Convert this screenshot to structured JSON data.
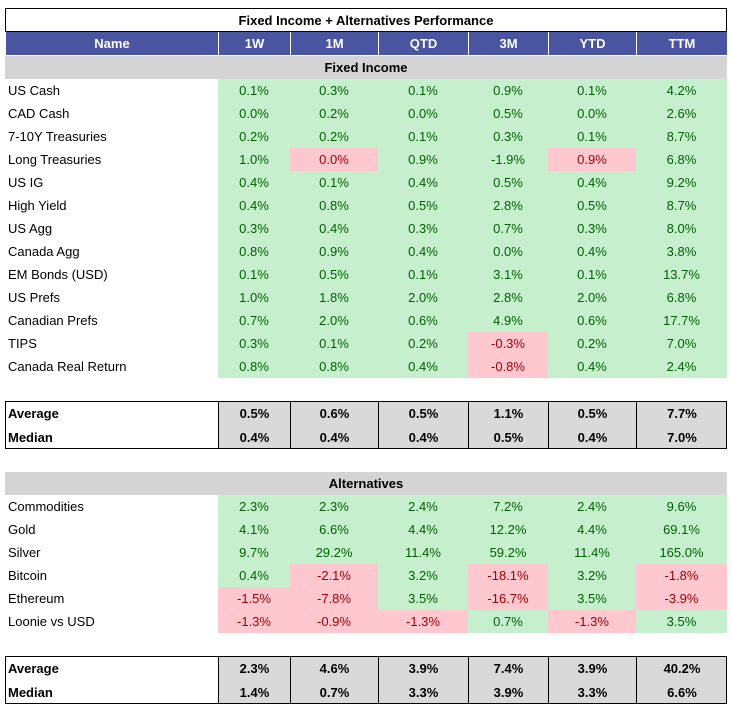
{
  "title": "Fixed Income + Alternatives Performance",
  "columns": [
    "Name",
    "1W",
    "1M",
    "QTD",
    "3M",
    "YTD",
    "TTM"
  ],
  "colors": {
    "g": {
      "fill": "#c6efce",
      "text": "#006100"
    },
    "r": {
      "fill": "#ffc7ce",
      "text": "#9c0006"
    },
    "header": "#4a55a2",
    "section": "#d4d4d4",
    "summary": "#d9d9d9"
  },
  "sections": [
    {
      "title": "Fixed Income",
      "rows": [
        {
          "name": "US Cash",
          "values": [
            "0.1%",
            "0.3%",
            "0.1%",
            "0.9%",
            "0.1%",
            "4.2%"
          ],
          "shade": "gggggg"
        },
        {
          "name": "CAD Cash",
          "values": [
            "0.0%",
            "0.2%",
            "0.0%",
            "0.5%",
            "0.0%",
            "2.6%"
          ],
          "shade": "gggggg"
        },
        {
          "name": "7-10Y Treasuries",
          "values": [
            "0.2%",
            "0.2%",
            "0.1%",
            "0.3%",
            "0.1%",
            "8.7%"
          ],
          "shade": "gggggg"
        },
        {
          "name": "Long Treasuries",
          "values": [
            "1.0%",
            "0.0%",
            "0.9%",
            "-1.9%",
            "0.9%",
            "6.8%"
          ],
          "shade": "grggrg"
        },
        {
          "name": "US IG",
          "values": [
            "0.4%",
            "0.1%",
            "0.4%",
            "0.5%",
            "0.4%",
            "9.2%"
          ],
          "shade": "gggggg"
        },
        {
          "name": "High Yield",
          "values": [
            "0.4%",
            "0.8%",
            "0.5%",
            "2.8%",
            "0.5%",
            "8.7%"
          ],
          "shade": "gggggg"
        },
        {
          "name": "US Agg",
          "values": [
            "0.3%",
            "0.4%",
            "0.3%",
            "0.7%",
            "0.3%",
            "8.0%"
          ],
          "shade": "gggggg"
        },
        {
          "name": "Canada Agg",
          "values": [
            "0.8%",
            "0.9%",
            "0.4%",
            "0.0%",
            "0.4%",
            "3.8%"
          ],
          "shade": "gggggg"
        },
        {
          "name": "EM Bonds (USD)",
          "values": [
            "0.1%",
            "0.5%",
            "0.1%",
            "3.1%",
            "0.1%",
            "13.7%"
          ],
          "shade": "gggggg"
        },
        {
          "name": "US Prefs",
          "values": [
            "1.0%",
            "1.8%",
            "2.0%",
            "2.8%",
            "2.0%",
            "6.8%"
          ],
          "shade": "gggggg"
        },
        {
          "name": "Canadian Prefs",
          "values": [
            "0.7%",
            "2.0%",
            "0.6%",
            "4.9%",
            "0.6%",
            "17.7%"
          ],
          "shade": "gggggg"
        },
        {
          "name": "TIPS",
          "values": [
            "0.3%",
            "0.1%",
            "0.2%",
            "-0.3%",
            "0.2%",
            "7.0%"
          ],
          "shade": "gggrgg"
        },
        {
          "name": "Canada Real Return",
          "values": [
            "0.8%",
            "0.8%",
            "0.4%",
            "-0.8%",
            "0.4%",
            "2.4%"
          ],
          "shade": "gggrgg"
        }
      ],
      "summary": [
        {
          "name": "Average",
          "values": [
            "0.5%",
            "0.6%",
            "0.5%",
            "1.1%",
            "0.5%",
            "7.7%"
          ]
        },
        {
          "name": "Median",
          "values": [
            "0.4%",
            "0.4%",
            "0.4%",
            "0.5%",
            "0.4%",
            "7.0%"
          ]
        }
      ]
    },
    {
      "title": "Alternatives",
      "rows": [
        {
          "name": "Commodities",
          "values": [
            "2.3%",
            "2.3%",
            "2.4%",
            "7.2%",
            "2.4%",
            "9.6%"
          ],
          "shade": "gggggg"
        },
        {
          "name": "Gold",
          "values": [
            "4.1%",
            "6.6%",
            "4.4%",
            "12.2%",
            "4.4%",
            "69.1%"
          ],
          "shade": "gggggg"
        },
        {
          "name": "Silver",
          "values": [
            "9.7%",
            "29.2%",
            "11.4%",
            "59.2%",
            "11.4%",
            "165.0%"
          ],
          "shade": "gggggg"
        },
        {
          "name": "Bitcoin",
          "values": [
            "0.4%",
            "-2.1%",
            "3.2%",
            "-18.1%",
            "3.2%",
            "-1.8%"
          ],
          "shade": "grgrgr"
        },
        {
          "name": "Ethereum",
          "values": [
            "-1.5%",
            "-7.8%",
            "3.5%",
            "-16.7%",
            "3.5%",
            "-3.9%"
          ],
          "shade": "rrgrgr"
        },
        {
          "name": "Loonie vs USD",
          "values": [
            "-1.3%",
            "-0.9%",
            "-1.3%",
            "0.7%",
            "-1.3%",
            "3.5%"
          ],
          "shade": "rrrgrg"
        }
      ],
      "summary": [
        {
          "name": "Average",
          "values": [
            "2.3%",
            "4.6%",
            "3.9%",
            "7.4%",
            "3.9%",
            "40.2%"
          ]
        },
        {
          "name": "Median",
          "values": [
            "1.4%",
            "0.7%",
            "3.3%",
            "3.9%",
            "3.3%",
            "6.6%"
          ]
        }
      ]
    }
  ]
}
